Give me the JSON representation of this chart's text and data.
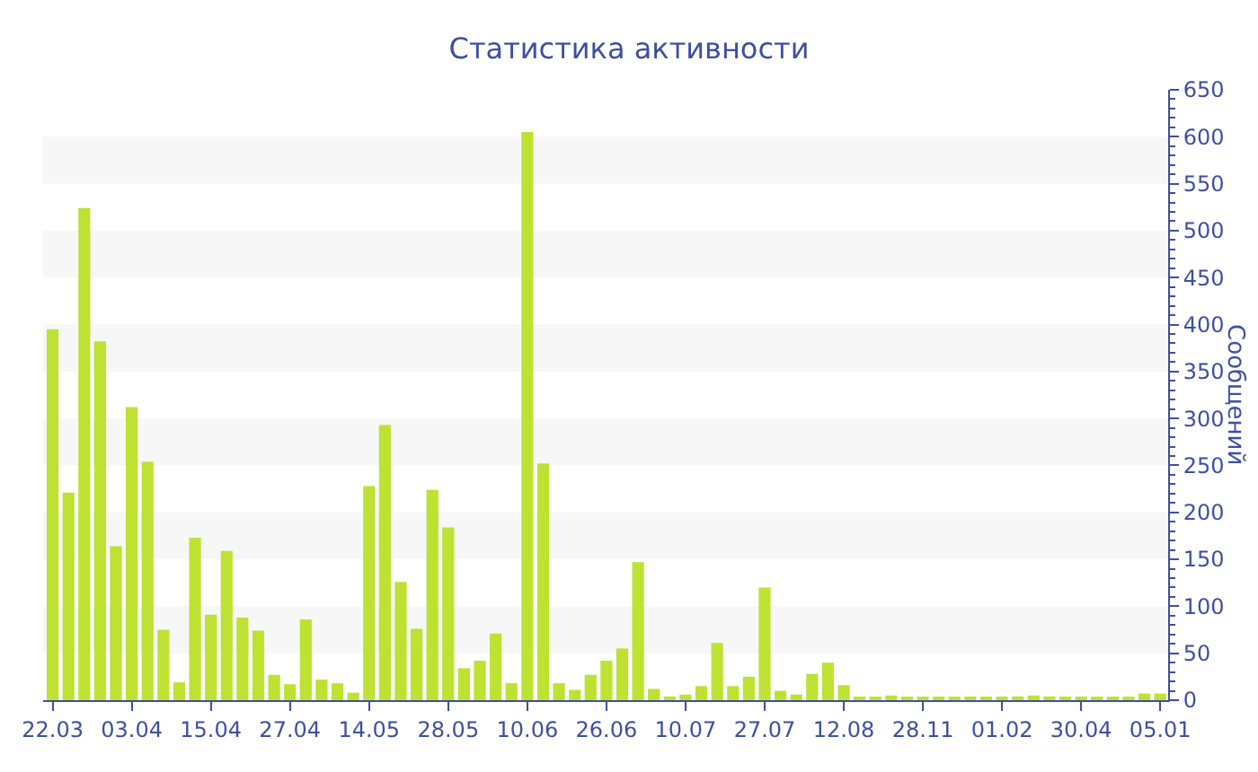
{
  "chart_data": {
    "type": "bar",
    "title": "Статистика активности",
    "ylabel": "Сообщений",
    "categories": [
      "22.03",
      null,
      null,
      null,
      null,
      "03.04",
      null,
      null,
      null,
      null,
      "15.04",
      null,
      null,
      null,
      null,
      "27.04",
      null,
      null,
      null,
      null,
      "14.05",
      null,
      null,
      null,
      null,
      "28.05",
      null,
      null,
      null,
      null,
      "10.06",
      null,
      null,
      null,
      null,
      "26.06",
      null,
      null,
      null,
      null,
      "10.07",
      null,
      null,
      null,
      null,
      "27.07",
      null,
      null,
      null,
      null,
      "12.08",
      null,
      null,
      null,
      null,
      "28.11",
      null,
      null,
      null,
      null,
      "01.02",
      null,
      null,
      null,
      null,
      "30.04",
      null,
      null,
      null,
      null,
      "05.01"
    ],
    "values": [
      395,
      221,
      524,
      382,
      164,
      312,
      254,
      75,
      19,
      173,
      91,
      159,
      88,
      74,
      27,
      17,
      86,
      22,
      18,
      8,
      228,
      293,
      126,
      76,
      224,
      184,
      34,
      42,
      71,
      18,
      605,
      252,
      18,
      11,
      27,
      42,
      55,
      147,
      12,
      4,
      6,
      15,
      61,
      15,
      25,
      120,
      10,
      6,
      28,
      40,
      16,
      3,
      3,
      5,
      3,
      3,
      3,
      3,
      3,
      3,
      3,
      4,
      5,
      4,
      3,
      3,
      3,
      3,
      3,
      7,
      7
    ],
    "color": "#bde232",
    "ylim": [
      0,
      650
    ],
    "yticks": [
      0,
      50,
      100,
      150,
      200,
      250,
      300,
      350,
      400,
      450,
      500,
      550,
      600,
      650
    ],
    "bands": [
      {
        "axis": "y",
        "from": 50,
        "to": 100,
        "color": "#f7f7f7"
      },
      {
        "axis": "y",
        "from": 150,
        "to": 200,
        "color": "#f7f7f7"
      },
      {
        "axis": "y",
        "from": 250,
        "to": 300,
        "color": "#f7f7f7"
      },
      {
        "axis": "y",
        "from": 350,
        "to": 400,
        "color": "#f7f7f7"
      },
      {
        "axis": "y",
        "from": 450,
        "to": 500,
        "color": "#f7f7f7"
      },
      {
        "axis": "y",
        "from": 550,
        "to": 600,
        "color": "#f7f7f7"
      }
    ],
    "legend": false
  }
}
